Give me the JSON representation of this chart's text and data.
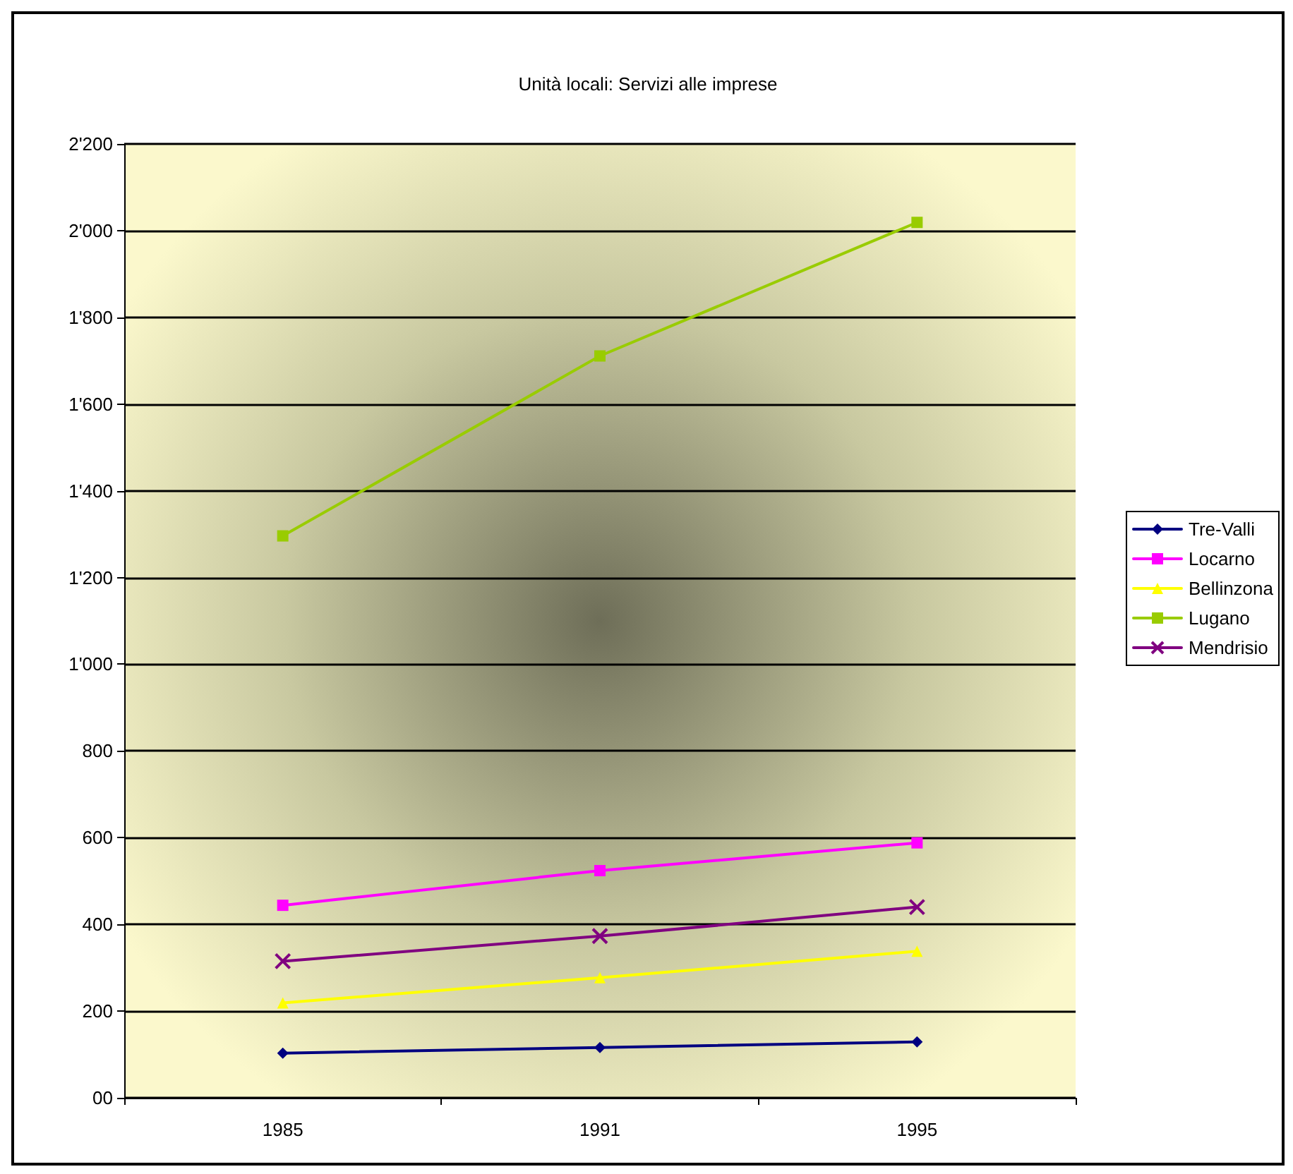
{
  "chart_data": {
    "type": "line",
    "title": "Unità locali: Servizi alle imprese",
    "categories": [
      "1985",
      "1991",
      "1995"
    ],
    "series": [
      {
        "name": "Tre-Valli",
        "color": "#000080",
        "marker": "diamond",
        "values": [
          103,
          116,
          129
        ]
      },
      {
        "name": "Locarno",
        "color": "#ff00ff",
        "marker": "square",
        "values": [
          444,
          524,
          588
        ]
      },
      {
        "name": "Bellinzona",
        "color": "#ffff00",
        "marker": "triangle",
        "values": [
          219,
          277,
          338
        ]
      },
      {
        "name": "Lugano",
        "color": "#99cc00",
        "marker": "square",
        "values": [
          1296,
          1711,
          2019
        ]
      },
      {
        "name": "Mendrisio",
        "color": "#800080",
        "marker": "cross",
        "values": [
          315,
          373,
          440
        ]
      }
    ],
    "ylim": [
      0,
      2200
    ],
    "yticks": [
      {
        "value": 0,
        "label": "00"
      },
      {
        "value": 200,
        "label": "200"
      },
      {
        "value": 400,
        "label": "400"
      },
      {
        "value": 600,
        "label": "600"
      },
      {
        "value": 800,
        "label": "800"
      },
      {
        "value": 1000,
        "label": "1'000"
      },
      {
        "value": 1200,
        "label": "1'200"
      },
      {
        "value": 1400,
        "label": "1'400"
      },
      {
        "value": 1600,
        "label": "1'600"
      },
      {
        "value": 1800,
        "label": "1'800"
      },
      {
        "value": 2000,
        "label": "2'000"
      },
      {
        "value": 2200,
        "label": "2'200"
      }
    ],
    "grid": "y",
    "legend": "right",
    "line_style": "solid"
  }
}
